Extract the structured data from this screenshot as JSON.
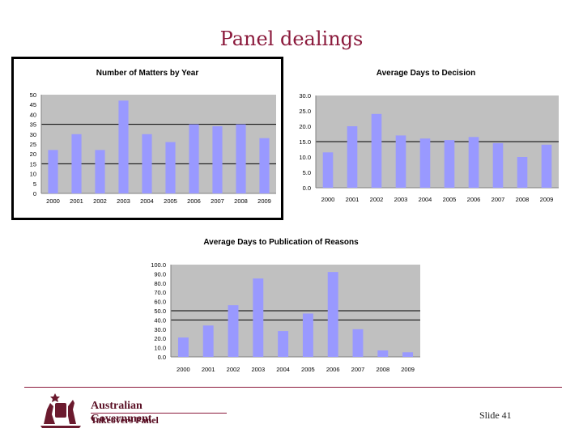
{
  "slide": {
    "title": "Panel dealings",
    "number_label": "Slide 41"
  },
  "footer": {
    "org_line1": "Australian Government",
    "org_line2": "Takeovers Panel"
  },
  "colors": {
    "bar": "#9999ff",
    "plot_bg": "#c0c0c0",
    "title": "#8b1a3c"
  },
  "chart_data": [
    {
      "type": "bar",
      "title": "Number of Matters by Year",
      "categories": [
        "2000",
        "2001",
        "2002",
        "2003",
        "2004",
        "2005",
        "2006",
        "2007",
        "2008",
        "2009"
      ],
      "values": [
        22,
        30,
        22,
        47,
        30,
        26,
        35,
        34,
        35,
        28
      ],
      "ylim": [
        0,
        50
      ],
      "yticks": [
        "0",
        "5",
        "10",
        "15",
        "20",
        "25",
        "30",
        "35",
        "40",
        "45",
        "50"
      ],
      "ytick_values": [
        0,
        5,
        10,
        15,
        20,
        25,
        30,
        35,
        40,
        45,
        50
      ],
      "reference_lines": [
        15,
        35
      ],
      "xlabel": "",
      "ylabel": ""
    },
    {
      "type": "bar",
      "title": "Average Days to Decision",
      "categories": [
        "2000",
        "2001",
        "2002",
        "2003",
        "2004",
        "2005",
        "2006",
        "2007",
        "2008",
        "2009"
      ],
      "values": [
        11.5,
        20.0,
        24.0,
        17.0,
        16.0,
        15.5,
        16.5,
        14.5,
        10.0,
        14.0
      ],
      "ylim": [
        0,
        30
      ],
      "yticks": [
        "0.0",
        "5.0",
        "10.0",
        "15.0",
        "20.0",
        "25.0",
        "30.0"
      ],
      "ytick_values": [
        0,
        5,
        10,
        15,
        20,
        25,
        30
      ],
      "reference_lines": [
        15
      ],
      "xlabel": "",
      "ylabel": ""
    },
    {
      "type": "bar",
      "title": "Average Days to Publication of Reasons",
      "categories": [
        "2000",
        "2001",
        "2002",
        "2003",
        "2004",
        "2005",
        "2006",
        "2007",
        "2008",
        "2009"
      ],
      "values": [
        21,
        34,
        56,
        85,
        28,
        47,
        92,
        30,
        7,
        5
      ],
      "ylim": [
        0,
        100
      ],
      "yticks": [
        "0.0",
        "10.0",
        "20.0",
        "30.0",
        "40.0",
        "50.0",
        "60.0",
        "70.0",
        "80.0",
        "90.0",
        "100.0"
      ],
      "ytick_values": [
        0,
        10,
        20,
        30,
        40,
        50,
        60,
        70,
        80,
        90,
        100
      ],
      "reference_lines": [
        40,
        50
      ],
      "xlabel": "",
      "ylabel": ""
    }
  ]
}
